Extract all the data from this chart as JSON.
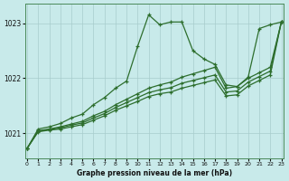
{
  "title": "Graphe pression niveau de la mer (hPa)",
  "background_color": "#c8eaea",
  "grid_color": "#a8cccc",
  "line_color": "#2d6e2d",
  "xlim_min": -0.2,
  "xlim_max": 23.2,
  "ylim_min": 1020.55,
  "ylim_max": 1023.35,
  "yticks": [
    1021,
    1022,
    1023
  ],
  "xticks": [
    0,
    1,
    2,
    3,
    4,
    5,
    6,
    7,
    8,
    9,
    10,
    11,
    12,
    13,
    14,
    15,
    16,
    17,
    18,
    19,
    20,
    21,
    22,
    23
  ],
  "line1_y": [
    1020.73,
    1021.08,
    1021.12,
    1021.18,
    1021.28,
    1021.35,
    1021.52,
    1021.65,
    1021.82,
    1021.95,
    1022.58,
    1023.15,
    1022.97,
    1023.02,
    1023.02,
    1022.5,
    1022.35,
    1022.25,
    1021.88,
    1021.85,
    1022.02,
    1022.9,
    1022.97,
    1023.02
  ],
  "line2_y": [
    1020.73,
    1021.05,
    1021.08,
    1021.12,
    1021.17,
    1021.22,
    1021.32,
    1021.4,
    1021.52,
    1021.62,
    1021.72,
    1021.82,
    1021.88,
    1021.93,
    1022.02,
    1022.08,
    1022.14,
    1022.2,
    1021.82,
    1021.85,
    1022.0,
    1022.1,
    1022.2,
    1023.02
  ],
  "line3_y": [
    1020.73,
    1021.04,
    1021.07,
    1021.1,
    1021.15,
    1021.19,
    1021.28,
    1021.36,
    1021.47,
    1021.56,
    1021.65,
    1021.74,
    1021.79,
    1021.83,
    1021.91,
    1021.96,
    1022.01,
    1022.06,
    1021.75,
    1021.77,
    1021.93,
    1022.03,
    1022.13,
    1023.02
  ],
  "line4_y": [
    1020.73,
    1021.03,
    1021.06,
    1021.08,
    1021.12,
    1021.16,
    1021.24,
    1021.32,
    1021.42,
    1021.5,
    1021.58,
    1021.67,
    1021.72,
    1021.75,
    1021.82,
    1021.87,
    1021.92,
    1021.97,
    1021.68,
    1021.7,
    1021.86,
    1021.96,
    1022.06,
    1023.02
  ]
}
